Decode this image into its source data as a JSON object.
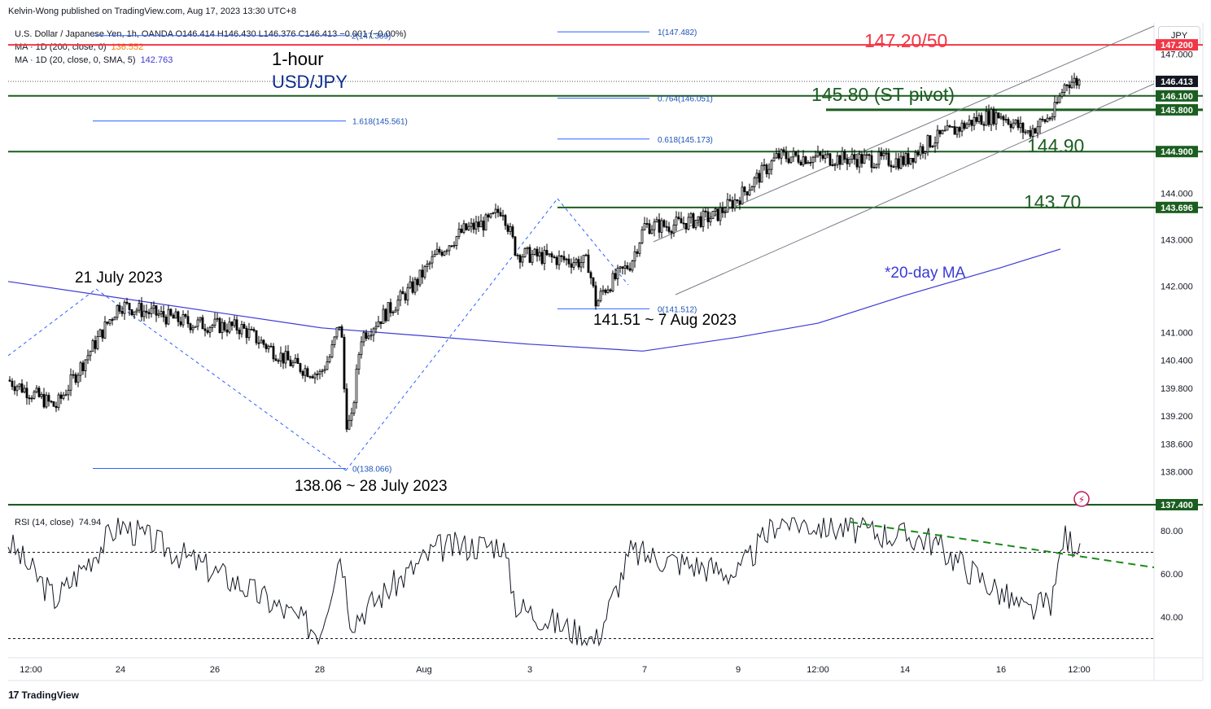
{
  "header": {
    "attribution": "Kelvin-Wong published on TradingView.com, Aug 17, 2023 13:30 UTC+8",
    "currency_button": "JPY"
  },
  "legend": {
    "symbol_line": "U.S. Dollar / Japanese Yen, 1h, OANDA  O146.414  H146.430  L146.376  C146.413  −0.001 (−0.00%)",
    "ma200_label": "MA · 1D (200, close, 0)",
    "ma200_value": "136.552",
    "ma20_label": "MA · 1D (20, close, 0, SMA, 5)",
    "ma20_value": "142.763",
    "rsi_label": "RSI (14, close)",
    "rsi_value": "74.94"
  },
  "colors": {
    "up_candle": "#ffffff",
    "down_candle": "#000000",
    "candle_outline": "#000000",
    "ma20": "#3a3ad6",
    "resistance_red": "#f23645",
    "support_green": "#1b5e20",
    "fib": "#2962ff",
    "channel": "#787b86",
    "rsi_line": "#131722",
    "rsi_trend": "#1b8a1b",
    "annotation_green": "#1b5e20",
    "annotation_blue": "#0d2d8f"
  },
  "annotations": {
    "timeframe": "1-hour",
    "pair": "USD/JPY",
    "resistance": "147.20/50",
    "pivot": "145.80 (ST pivot)",
    "support_1": "144.90",
    "support_2": "143.70",
    "july21": "21 July 2023",
    "low_july28": "138.06 ~ 28 July 2023",
    "low_aug7": "141.51 ~ 7 Aug 2023",
    "ma_note": "*20-day MA"
  },
  "fib_labels": {
    "f2": "2(147.389)",
    "f1": "1(147.482)",
    "f0764": "0.764(146.051)",
    "f1618": "1.618(145.561)",
    "f0618": "0.618(145.173)",
    "f0a": "0(141.512)",
    "f0b": "0(138.066)"
  },
  "price_axis": {
    "ticks": [
      "147.000",
      "144.000",
      "143.000",
      "142.000",
      "141.000",
      "140.400",
      "139.800",
      "139.200",
      "138.600",
      "138.000"
    ],
    "tags": [
      {
        "label": "147.200",
        "color": "#f23645"
      },
      {
        "label": "146.413",
        "color": "#131722"
      },
      {
        "label": "146.100",
        "color": "#1b5e20"
      },
      {
        "label": "145.800",
        "color": "#1b5e20"
      },
      {
        "label": "144.900",
        "color": "#1b5e20"
      },
      {
        "label": "143.696",
        "color": "#1b5e20"
      },
      {
        "label": "137.400",
        "color": "#1b5e20"
      }
    ]
  },
  "rsi_axis": {
    "ticks": [
      "80.00",
      "60.00",
      "40.00"
    ]
  },
  "time_axis": {
    "ticks": [
      "12:00",
      "24",
      "26",
      "28",
      "Aug",
      "3",
      "7",
      "9",
      "12:00",
      "14",
      "16",
      "12:00"
    ]
  },
  "chart_data": {
    "type": "line",
    "title": "U.S. Dollar / Japanese Yen, 1h, OANDA",
    "xlabel": "",
    "ylabel": "",
    "ylim": [
      137.3,
      147.6
    ],
    "series": [
      {
        "name": "USD/JPY",
        "x": [
          "Jul 21 12:00",
          "Jul 21 22:00",
          "Jul 23 22:00",
          "Jul 24 12:00",
          "Jul 25 12:00",
          "Jul 26 12:00",
          "Jul 27 00:00",
          "Jul 27 12:00",
          "Jul 28 00:00",
          "Jul 28 06:00",
          "Jul 28 12:00",
          "Jul 28 23:00",
          "Jul 31 12:00",
          "Aug 1 12:00",
          "Aug 2 12:00",
          "Aug 3 12:00",
          "Aug 3 23:00",
          "Aug 4 12:00",
          "Aug 6 23:00",
          "Aug 7 06:00",
          "Aug 7 12:00",
          "Aug 8 12:00",
          "Aug 9 00:00",
          "Aug 9 12:00",
          "Aug 10 12:00",
          "Aug 11 00:00",
          "Aug 11 12:00",
          "Aug 14 00:00",
          "Aug 14 12:00",
          "Aug 15 12:00",
          "Aug 16 00:00",
          "Aug 16 12:00",
          "Aug 17 00:00",
          "Aug 17 05:00",
          "Aug 17 06:00"
        ],
        "values": [
          139.7,
          139.4,
          141.6,
          141.2,
          141.1,
          140.3,
          140.1,
          140.5,
          141.3,
          139.1,
          139.0,
          140.9,
          142.0,
          142.7,
          143.2,
          143.4,
          143.7,
          142.7,
          142.5,
          141.6,
          141.9,
          142.5,
          143.3,
          143.3,
          143.5,
          143.9,
          144.8,
          144.7,
          145.1,
          145.6,
          145.7,
          145.3,
          145.7,
          146.3,
          146.41
        ]
      },
      {
        "name": "*20-day MA",
        "x": [
          "Jul 21 00:00",
          "Jul 28 00:00",
          "Aug 3 00:00",
          "Aug 7 00:00",
          "Aug 9 00:00",
          "Aug 11 00:00",
          "Aug 14 00:00",
          "Aug 16 00:00",
          "Aug 17 00:00"
        ],
        "values": [
          142.1,
          141.1,
          140.75,
          140.6,
          140.9,
          141.2,
          141.8,
          142.4,
          142.8
        ]
      },
      {
        "name": "RSI (14, close)",
        "x": [
          "Jul 21 12:00",
          "Jul 21 22:00",
          "Jul 23 22:00",
          "Jul 25 12:00",
          "Jul 27 00:00",
          "Jul 28 00:00",
          "Jul 28 12:00",
          "Aug 1 12:00",
          "Aug 3 23:00",
          "Aug 4 12:00",
          "Aug 7 06:00",
          "Aug 8 12:00",
          "Aug 11 00:00",
          "Aug 11 12:00",
          "Aug 14 12:00",
          "Aug 16 12:00",
          "Aug 17 00:00",
          "Aug 17 05:00",
          "Aug 17 06:00"
        ],
        "values": [
          62,
          48,
          83,
          55,
          33,
          71,
          38,
          72,
          74,
          45,
          29,
          70,
          60,
          85,
          76,
          42,
          48,
          80,
          74.94
        ]
      }
    ],
    "horizontal_levels": [
      147.2,
      146.1,
      145.8,
      144.9,
      143.696,
      137.4
    ],
    "rsi_levels": [
      70,
      30
    ]
  }
}
